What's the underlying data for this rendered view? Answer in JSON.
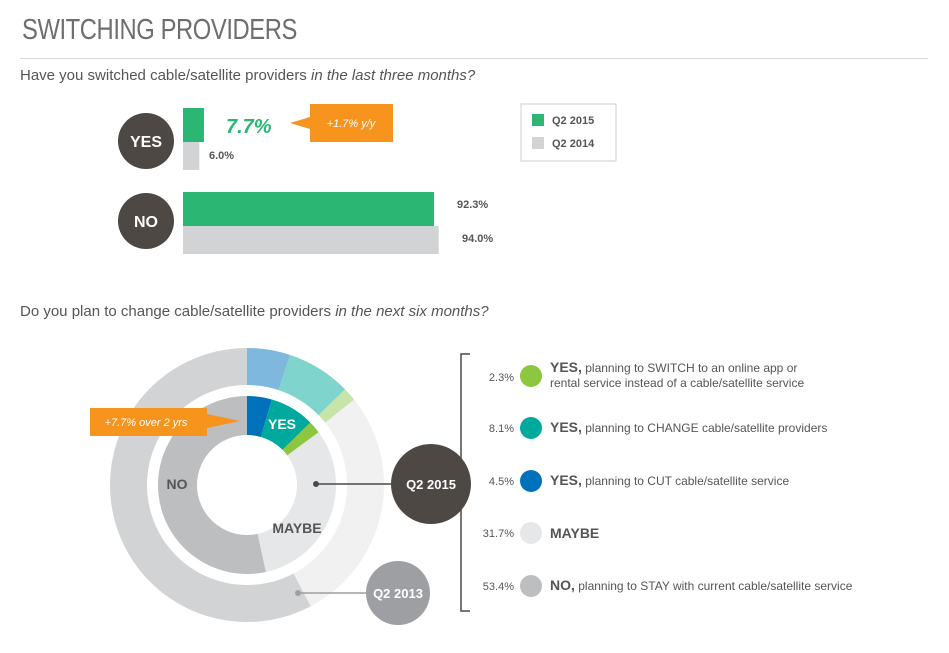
{
  "title": "SWITCHING PROVIDERS",
  "q1": {
    "text": "Have you switched cable/satellite providers ",
    "emph": "in the last three months?"
  },
  "q2": {
    "text": "Do you plan to change cable/satellite providers ",
    "emph": "in the next six months?"
  },
  "colors": {
    "q2_2015": "#2bb673",
    "q2_2014": "#d2d3d5",
    "orange": "#f7941d",
    "dark_circle": "#4d4844",
    "switch": "#8dc63f",
    "change": "#00a99d",
    "cut": "#0072bc",
    "maybe": "#e6e7e8",
    "no": "#bcbec0",
    "outer_switch": "#c7e5a8",
    "outer_change": "#7fd4ce",
    "outer_cut": "#7fb8de",
    "outer_maybe": "#f1f1f2",
    "outer_no": "#d1d3d4"
  },
  "chart_data": [
    {
      "type": "bar",
      "orientation": "horizontal",
      "categories": [
        "YES",
        "NO"
      ],
      "series": [
        {
          "name": "Q2 2015",
          "values": [
            7.7,
            92.3
          ],
          "labels": [
            "7.7%",
            "92.3%"
          ]
        },
        {
          "name": "Q2 2014",
          "values": [
            6.0,
            94.0
          ],
          "labels": [
            "6.0%",
            "94.0%"
          ]
        }
      ],
      "annotation": "+1.7% y/y",
      "legend": [
        "Q2 2015",
        "Q2 2014"
      ],
      "legend_position": "top-right"
    },
    {
      "type": "pie",
      "style": "nested-donut",
      "inner_ring_label": "Q2 2015",
      "outer_ring_label": "Q2 2013",
      "inner_slice_labels": [
        "YES",
        "MAYBE",
        "NO"
      ],
      "annotation": "+7.7% over 2 yrs",
      "slices": [
        {
          "key": "switch",
          "value": 2.3,
          "label": "2.3%",
          "bold": "YES,",
          "text": " planning to SWITCH to an online app or",
          "text2": "rental service instead of a cable/satellite service"
        },
        {
          "key": "change",
          "value": 8.1,
          "label": "8.1%",
          "bold": "YES,",
          "text": " planning to CHANGE cable/satellite providers",
          "text2": ""
        },
        {
          "key": "cut",
          "value": 4.5,
          "label": "4.5%",
          "bold": "YES,",
          "text": " planning to CUT cable/satellite service",
          "text2": ""
        },
        {
          "key": "maybe",
          "value": 31.7,
          "label": "31.7%",
          "bold": "MAYBE",
          "text": "",
          "text2": ""
        },
        {
          "key": "no",
          "value": 53.4,
          "label": "53.4%",
          "bold": "NO,",
          "text": " planning to STAY with current cable/satellite service",
          "text2": ""
        }
      ],
      "outer_slices": [
        {
          "key": "cut",
          "value": 5.1
        },
        {
          "key": "change",
          "value": 7.6
        },
        {
          "key": "switch",
          "value": 1.6
        },
        {
          "key": "maybe",
          "value": 28.0
        },
        {
          "key": "no",
          "value": 57.7
        }
      ]
    }
  ]
}
